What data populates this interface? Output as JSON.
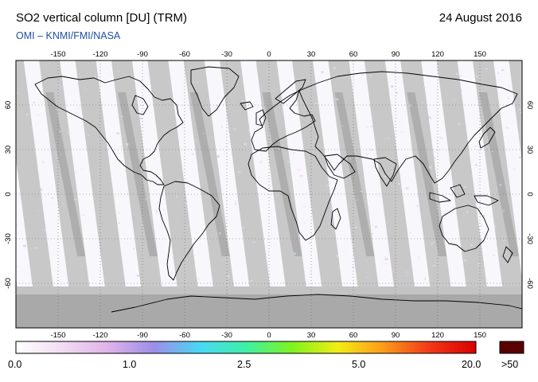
{
  "header": {
    "title": "SO2 vertical column [DU] (TRM)",
    "date": "24 August 2016",
    "credit": "OMI  –  KNMI/FMI/NASA"
  },
  "map": {
    "projection": "equirectangular",
    "lon_range": [
      -180,
      180
    ],
    "lat_range": [
      -90,
      90
    ],
    "lon_ticks": [
      "-150",
      "-120",
      "-90",
      "-60",
      "-30",
      "0",
      "30",
      "60",
      "90",
      "120",
      "150"
    ],
    "lat_ticks": [
      "60",
      "30",
      "0",
      "-30",
      "-60"
    ],
    "colors": {
      "no_data_gap": "#c8c8c8",
      "overlap_dark": "#999999",
      "polar_night": "#a9a9a9",
      "background": "#f8f7fb",
      "coastline": "#000000",
      "graticule": "#666666"
    }
  },
  "colorbar": {
    "labels": [
      "0.0",
      "1.0",
      "2.5",
      "5.0",
      "20.0"
    ],
    "overflow_label": ">50",
    "overflow_color": "#5a0000",
    "gradient_stops": [
      "#ffffff",
      "#f2dcf3",
      "#e0b2ea",
      "#9c8ee8",
      "#49d8f5",
      "#3ef0a6",
      "#7ff31e",
      "#f4ec14",
      "#fb9a1a",
      "#f23818",
      "#d90000"
    ]
  }
}
